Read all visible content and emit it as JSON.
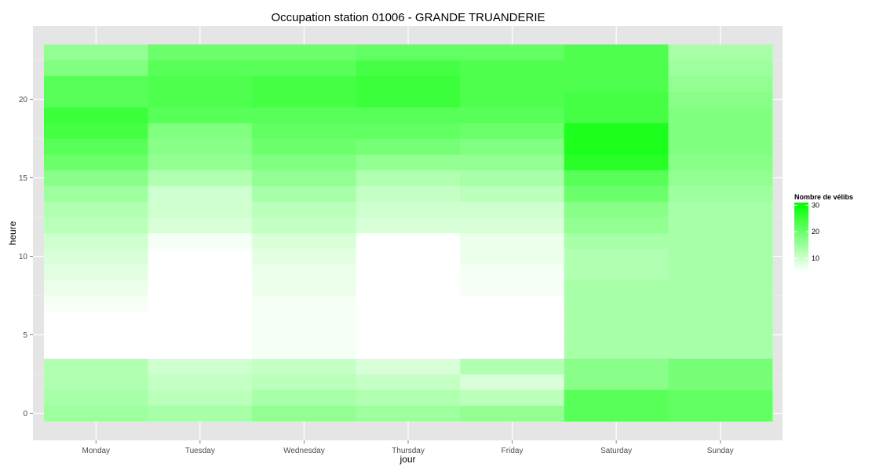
{
  "chart_data": {
    "type": "heatmap",
    "title": "Occupation station 01006 - GRANDE TRUANDERIE",
    "xlabel": "jour",
    "ylabel": "heure",
    "x_categories": [
      "Monday",
      "Tuesday",
      "Wednesday",
      "Thursday",
      "Friday",
      "Saturday",
      "Sunday"
    ],
    "y_values": [
      0,
      1,
      2,
      3,
      4,
      5,
      6,
      7,
      8,
      9,
      10,
      11,
      12,
      13,
      14,
      15,
      16,
      17,
      18,
      19,
      20,
      21,
      22,
      23
    ],
    "y_ticks": [
      0,
      5,
      10,
      15,
      20
    ],
    "ylim": [
      -0.5,
      23.5
    ],
    "grid": true,
    "legend": {
      "title": "Nombre de vélibs",
      "ticks": [
        10,
        20,
        30
      ],
      "min": 5,
      "max": 31,
      "low_color": "#ffffff",
      "high_color": "#00ff00",
      "placement": "right"
    },
    "values_by_day": {
      "Monday": [
        15,
        14,
        13,
        13,
        5,
        5,
        5,
        6,
        7,
        8,
        9,
        10,
        12,
        13,
        15,
        17,
        20,
        22,
        24,
        25,
        22,
        22,
        18,
        16
      ],
      "Tuesday": [
        14,
        12,
        11,
        10,
        3,
        3,
        3,
        3,
        4,
        4,
        5,
        6,
        9,
        10,
        10,
        13,
        16,
        17,
        18,
        22,
        23,
        23,
        22,
        20
      ],
      "Wednesday": [
        16,
        14,
        12,
        11,
        6,
        6,
        6,
        6,
        7,
        7,
        8,
        9,
        11,
        12,
        14,
        16,
        18,
        20,
        21,
        22,
        24,
        24,
        22,
        20
      ],
      "Thursday": [
        15,
        13,
        11,
        9,
        2,
        0,
        0,
        2,
        3,
        3,
        5,
        5,
        9,
        10,
        11,
        13,
        16,
        19,
        21,
        22,
        25,
        25,
        24,
        21
      ],
      "Friday": [
        16,
        12,
        9,
        13,
        4,
        5,
        5,
        5,
        6,
        6,
        7,
        7,
        9,
        10,
        12,
        14,
        16,
        18,
        20,
        22,
        23,
        23,
        23,
        21
      ],
      "Saturday": [
        22,
        22,
        17,
        17,
        14,
        14,
        14,
        14,
        14,
        13,
        13,
        14,
        16,
        17,
        20,
        22,
        27,
        28,
        28,
        24,
        24,
        23,
        23,
        23
      ],
      "Sunday": [
        21,
        21,
        19,
        19,
        14,
        14,
        14,
        14,
        14,
        14,
        14,
        14,
        14,
        14,
        15,
        16,
        17,
        18,
        18,
        18,
        17,
        16,
        15,
        14
      ]
    }
  }
}
